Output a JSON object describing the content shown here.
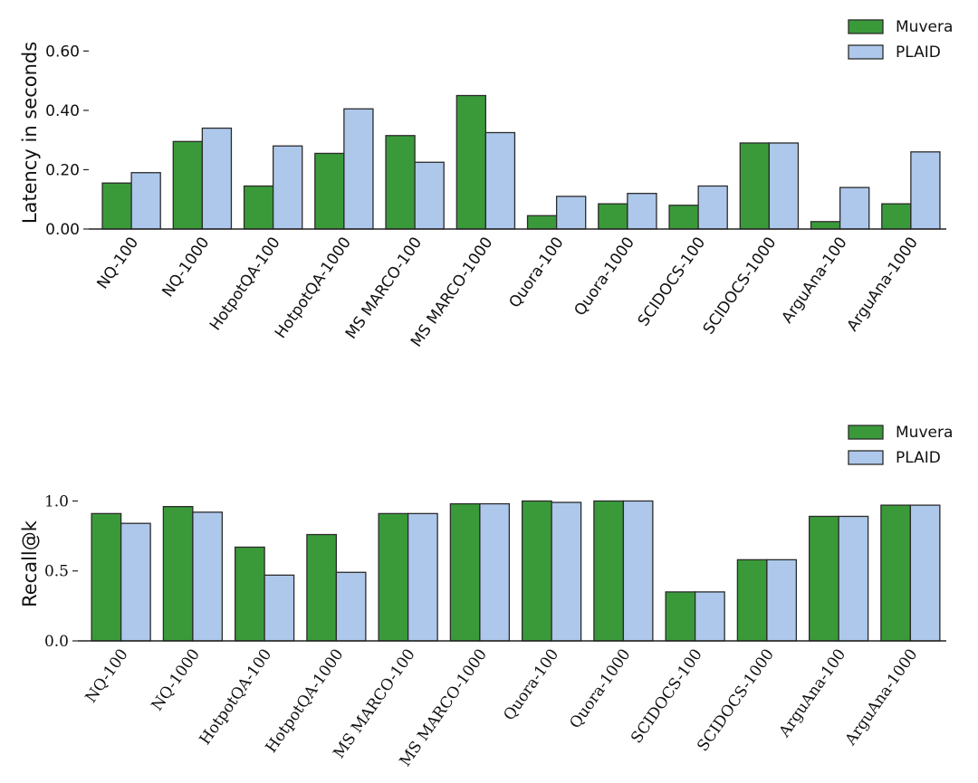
{
  "colors": {
    "muvera": "#3a9a3a",
    "plaid": "#aec8ec",
    "edge": "#2b2b2b"
  },
  "chart_data": [
    {
      "type": "bar",
      "ylabel": "Latency in seconds",
      "ylim": [
        0,
        0.65
      ],
      "yticks": [
        0.0,
        0.2,
        0.4,
        0.6
      ],
      "ytick_labels": [
        "0.00",
        "0.20",
        "0.40",
        "0.60"
      ],
      "legend_placement": "top-right",
      "categories": [
        "NQ-100",
        "NQ-1000",
        "HotpotQA-100",
        "HotpotQA-1000",
        "MS MARCO-100",
        "MS MARCO-1000",
        "Quora-100",
        "Quora-1000",
        "SCIDOCS-100",
        "SCIDOCS-1000",
        "ArguAna-100",
        "ArguAna-1000"
      ],
      "series": [
        {
          "name": "Muvera",
          "values": [
            0.155,
            0.295,
            0.145,
            0.255,
            0.315,
            0.45,
            0.045,
            0.085,
            0.08,
            0.29,
            0.025,
            0.085
          ]
        },
        {
          "name": "PLAID",
          "values": [
            0.19,
            0.34,
            0.28,
            0.405,
            0.225,
            0.325,
            0.11,
            0.12,
            0.145,
            0.29,
            0.14,
            0.26
          ]
        }
      ]
    },
    {
      "type": "bar",
      "ylabel": "Recall@k",
      "ylim": [
        0,
        1.1
      ],
      "yticks": [
        0.0,
        0.5,
        1.0
      ],
      "ytick_labels": [
        "0.0",
        "0.5",
        "1.0"
      ],
      "legend_placement": "top-right",
      "categories": [
        "NQ-100",
        "NQ-1000",
        "HotpotQA-100",
        "HotpotQA-1000",
        "MS MARCO-100",
        "MS MARCO-1000",
        "Quora-100",
        "Quora-1000",
        "SCIDOCS-100",
        "SCIDOCS-1000",
        "ArguAna-100",
        "ArguAna-1000"
      ],
      "series": [
        {
          "name": "Muvera",
          "values": [
            0.91,
            0.96,
            0.67,
            0.76,
            0.91,
            0.98,
            1.0,
            1.0,
            0.35,
            0.58,
            0.89,
            0.97
          ]
        },
        {
          "name": "PLAID",
          "values": [
            0.84,
            0.92,
            0.47,
            0.49,
            0.91,
            0.98,
            0.99,
            1.0,
            0.35,
            0.58,
            0.89,
            0.97
          ]
        }
      ]
    }
  ]
}
